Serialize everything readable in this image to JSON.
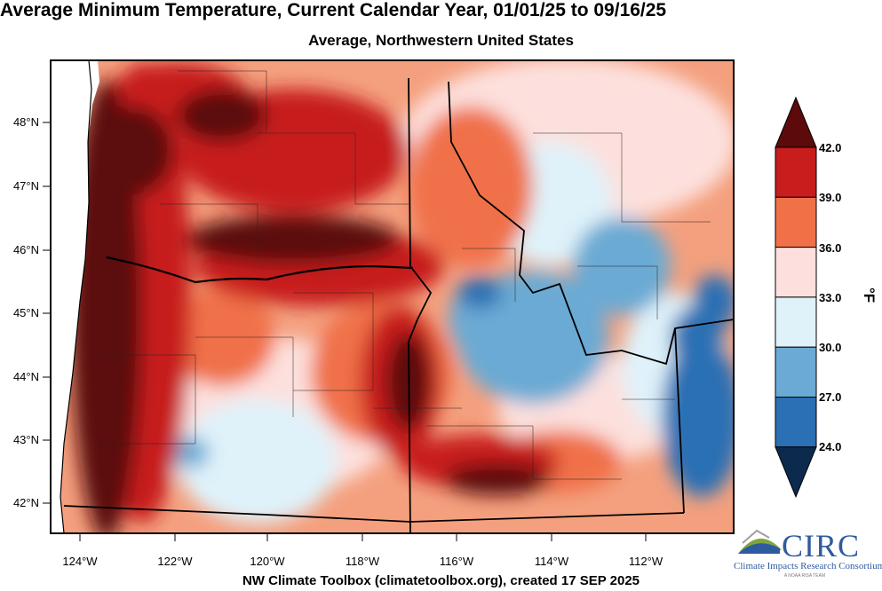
{
  "title": "Average Minimum Temperature, Current Calendar Year, 01/01/25 to 09/16/25",
  "subtitle": "Average, Northwestern United States",
  "footer": "NW Climate Toolbox (climatetoolbox.org), created 17 SEP 2025",
  "latitude_labels": [
    "48°N",
    "47°N",
    "46°N",
    "45°N",
    "44°N",
    "43°N",
    "42°N"
  ],
  "longitude_labels": [
    "124°W",
    "122°W",
    "120°W",
    "118°W",
    "116°W",
    "114°W",
    "112°W"
  ],
  "colorbar": {
    "units": "°F",
    "ticks": [
      "42.0",
      "39.0",
      "36.0",
      "33.0",
      "30.0",
      "27.0",
      "24.0"
    ],
    "colors": [
      "#5c0a0a",
      "#c71d1d",
      "#f07148",
      "#fde0dd",
      "#dff2fa",
      "#6aaad4",
      "#2b6fb4",
      "#0b2a4e"
    ]
  },
  "logo": {
    "name": "CIRC",
    "subtitle": "Climate Impacts Research Consortium",
    "tagline": "A NOAA RISA TEAM"
  }
}
